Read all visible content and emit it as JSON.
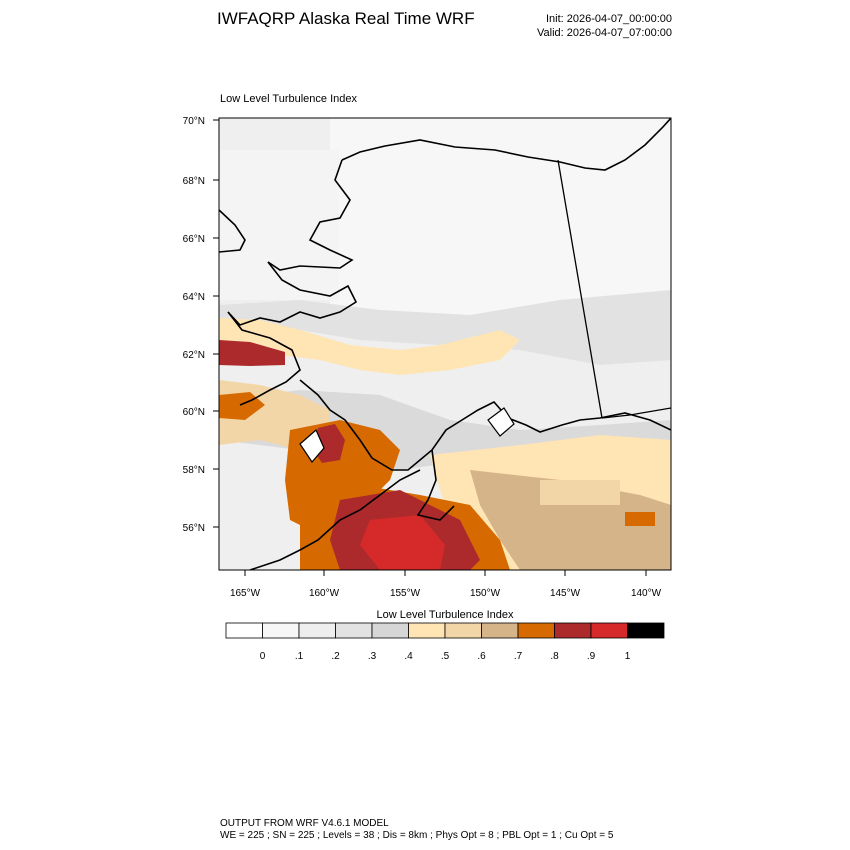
{
  "header": {
    "title": "IWFAQRP Alaska Real Time WRF",
    "init": "Init: 2026-04-07_00:00:00",
    "valid": "Valid: 2026-04-07_07:00:00"
  },
  "map": {
    "title": "Low Level Turbulence Index",
    "lat_labels": [
      "70°N",
      "68°N",
      "66°N",
      "64°N",
      "62°N",
      "60°N",
      "58°N",
      "56°N"
    ],
    "lon_labels": [
      "165°W",
      "160°W",
      "155°W",
      "150°W",
      "145°W",
      "140°W"
    ],
    "extent": {
      "lon": [
        -166.5,
        -138.5
      ],
      "lat": [
        54.5,
        70.2
      ]
    }
  },
  "colorbar": {
    "title": "Low Level Turbulence Index",
    "labels": [
      "0",
      ".1",
      ".2",
      ".3",
      ".4",
      ".5",
      ".6",
      ".7",
      ".8",
      ".9",
      "1"
    ],
    "colors": [
      "#ffffff",
      "#f7f7f7",
      "#eeeeee",
      "#e2e2e2",
      "#d6d6d6",
      "#ffe4b4",
      "#f3d6a8",
      "#d5b48a",
      "#d66a00",
      "#ac2a2c",
      "#d62a2a",
      "#000000"
    ]
  },
  "footer": {
    "line1": "OUTPUT FROM WRF V4.6.1 MODEL",
    "line2": "WE = 225 ; SN = 225 ; Levels = 38 ; Dis = 8km ; Phys Opt = 8 ; PBL Opt = 1 ; Cu Opt = 5"
  }
}
